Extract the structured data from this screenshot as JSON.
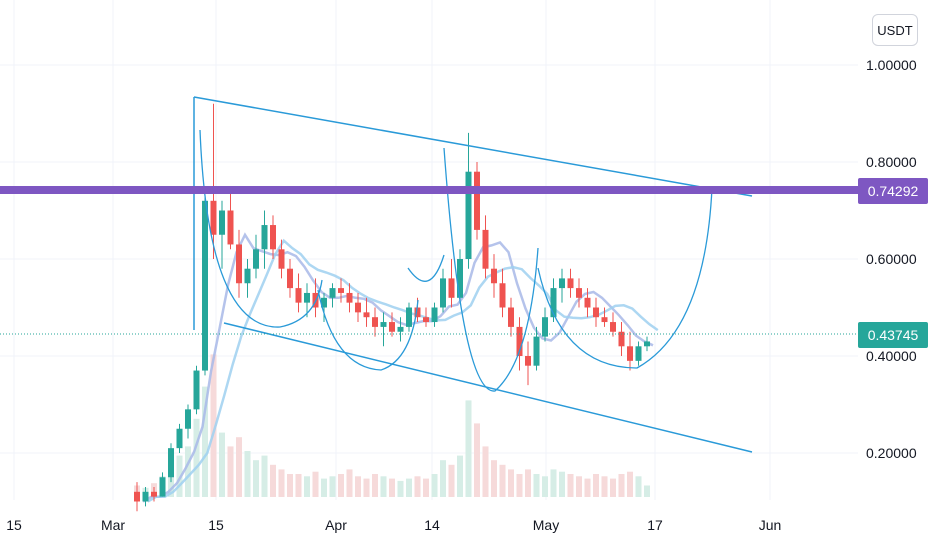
{
  "currency_button": "USDT",
  "colors": {
    "up": "#26a69a",
    "down": "#ef5350",
    "up_volume": "#d6ede6",
    "down_volume": "#f6dada",
    "trendline": "#2a9ad8",
    "resistance": "#7e57c2",
    "ma_light": "#9fd0f0",
    "ma_mid": "#a8b8e8",
    "grid": "#f0f3fa"
  },
  "price_badges": {
    "resistance": "0.74292",
    "last": "0.43745"
  },
  "chart_data": {
    "type": "candlestick",
    "y_ticks": [
      "1.00000",
      "0.80000",
      "0.60000",
      "0.40000",
      "0.20000"
    ],
    "y_tick_values": [
      1.0,
      0.8,
      0.6,
      0.4,
      0.2
    ],
    "x_ticks": [
      "15",
      "Mar",
      "15",
      "Apr",
      "14",
      "May",
      "17",
      "Jun"
    ],
    "resistance_level": 0.74292,
    "last_price": 0.43745,
    "candles": [
      [
        0.12,
        0.14,
        0.08,
        0.1
      ],
      [
        0.1,
        0.13,
        0.09,
        0.12
      ],
      [
        0.12,
        0.13,
        0.1,
        0.11
      ],
      [
        0.11,
        0.16,
        0.11,
        0.15
      ],
      [
        0.15,
        0.22,
        0.14,
        0.21
      ],
      [
        0.21,
        0.26,
        0.2,
        0.25
      ],
      [
        0.25,
        0.3,
        0.23,
        0.29
      ],
      [
        0.29,
        0.38,
        0.28,
        0.37
      ],
      [
        0.37,
        0.73,
        0.36,
        0.72
      ],
      [
        0.72,
        0.92,
        0.6,
        0.65
      ],
      [
        0.65,
        0.72,
        0.58,
        0.7
      ],
      [
        0.7,
        0.74,
        0.62,
        0.63
      ],
      [
        0.63,
        0.66,
        0.52,
        0.55
      ],
      [
        0.55,
        0.6,
        0.52,
        0.58
      ],
      [
        0.58,
        0.65,
        0.56,
        0.62
      ],
      [
        0.62,
        0.7,
        0.58,
        0.67
      ],
      [
        0.67,
        0.69,
        0.6,
        0.62
      ],
      [
        0.62,
        0.64,
        0.56,
        0.58
      ],
      [
        0.58,
        0.6,
        0.52,
        0.54
      ],
      [
        0.54,
        0.57,
        0.49,
        0.51
      ],
      [
        0.51,
        0.55,
        0.48,
        0.53
      ],
      [
        0.53,
        0.56,
        0.48,
        0.5
      ],
      [
        0.5,
        0.53,
        0.47,
        0.52
      ],
      [
        0.52,
        0.55,
        0.5,
        0.54
      ],
      [
        0.54,
        0.56,
        0.51,
        0.53
      ],
      [
        0.53,
        0.55,
        0.49,
        0.51
      ],
      [
        0.51,
        0.53,
        0.47,
        0.49
      ],
      [
        0.49,
        0.52,
        0.46,
        0.48
      ],
      [
        0.48,
        0.5,
        0.44,
        0.46
      ],
      [
        0.46,
        0.49,
        0.42,
        0.47
      ],
      [
        0.47,
        0.49,
        0.44,
        0.45
      ],
      [
        0.45,
        0.48,
        0.43,
        0.46
      ],
      [
        0.46,
        0.51,
        0.45,
        0.5
      ],
      [
        0.5,
        0.52,
        0.47,
        0.48
      ],
      [
        0.48,
        0.5,
        0.46,
        0.47
      ],
      [
        0.47,
        0.51,
        0.46,
        0.5
      ],
      [
        0.5,
        0.58,
        0.49,
        0.56
      ],
      [
        0.56,
        0.6,
        0.5,
        0.52
      ],
      [
        0.52,
        0.62,
        0.51,
        0.6
      ],
      [
        0.6,
        0.86,
        0.58,
        0.78
      ],
      [
        0.78,
        0.8,
        0.64,
        0.66
      ],
      [
        0.66,
        0.69,
        0.56,
        0.58
      ],
      [
        0.58,
        0.61,
        0.52,
        0.55
      ],
      [
        0.55,
        0.58,
        0.48,
        0.5
      ],
      [
        0.5,
        0.52,
        0.44,
        0.46
      ],
      [
        0.46,
        0.48,
        0.37,
        0.4
      ],
      [
        0.4,
        0.43,
        0.34,
        0.38
      ],
      [
        0.38,
        0.46,
        0.37,
        0.44
      ],
      [
        0.44,
        0.5,
        0.43,
        0.48
      ],
      [
        0.48,
        0.56,
        0.47,
        0.54
      ],
      [
        0.54,
        0.58,
        0.51,
        0.56
      ],
      [
        0.56,
        0.58,
        0.52,
        0.54
      ],
      [
        0.54,
        0.56,
        0.5,
        0.52
      ],
      [
        0.52,
        0.54,
        0.48,
        0.5
      ],
      [
        0.5,
        0.52,
        0.46,
        0.48
      ],
      [
        0.48,
        0.5,
        0.46,
        0.47
      ],
      [
        0.47,
        0.49,
        0.44,
        0.45
      ],
      [
        0.45,
        0.47,
        0.4,
        0.42
      ],
      [
        0.42,
        0.45,
        0.37,
        0.39
      ],
      [
        0.39,
        0.43,
        0.38,
        0.42
      ],
      [
        0.42,
        0.44,
        0.41,
        0.43
      ]
    ],
    "volume": [
      0.05,
      0.04,
      0.06,
      0.09,
      0.12,
      0.18,
      0.22,
      0.34,
      0.48,
      0.62,
      0.28,
      0.22,
      0.26,
      0.2,
      0.16,
      0.18,
      0.14,
      0.12,
      0.1,
      0.1,
      0.09,
      0.11,
      0.08,
      0.09,
      0.1,
      0.12,
      0.09,
      0.08,
      0.1,
      0.09,
      0.08,
      0.07,
      0.08,
      0.09,
      0.08,
      0.1,
      0.16,
      0.14,
      0.18,
      0.42,
      0.32,
      0.22,
      0.16,
      0.14,
      0.12,
      0.1,
      0.12,
      0.1,
      0.09,
      0.12,
      0.11,
      0.1,
      0.09,
      0.08,
      0.1,
      0.09,
      0.08,
      0.1,
      0.11,
      0.09,
      0.05
    ]
  }
}
